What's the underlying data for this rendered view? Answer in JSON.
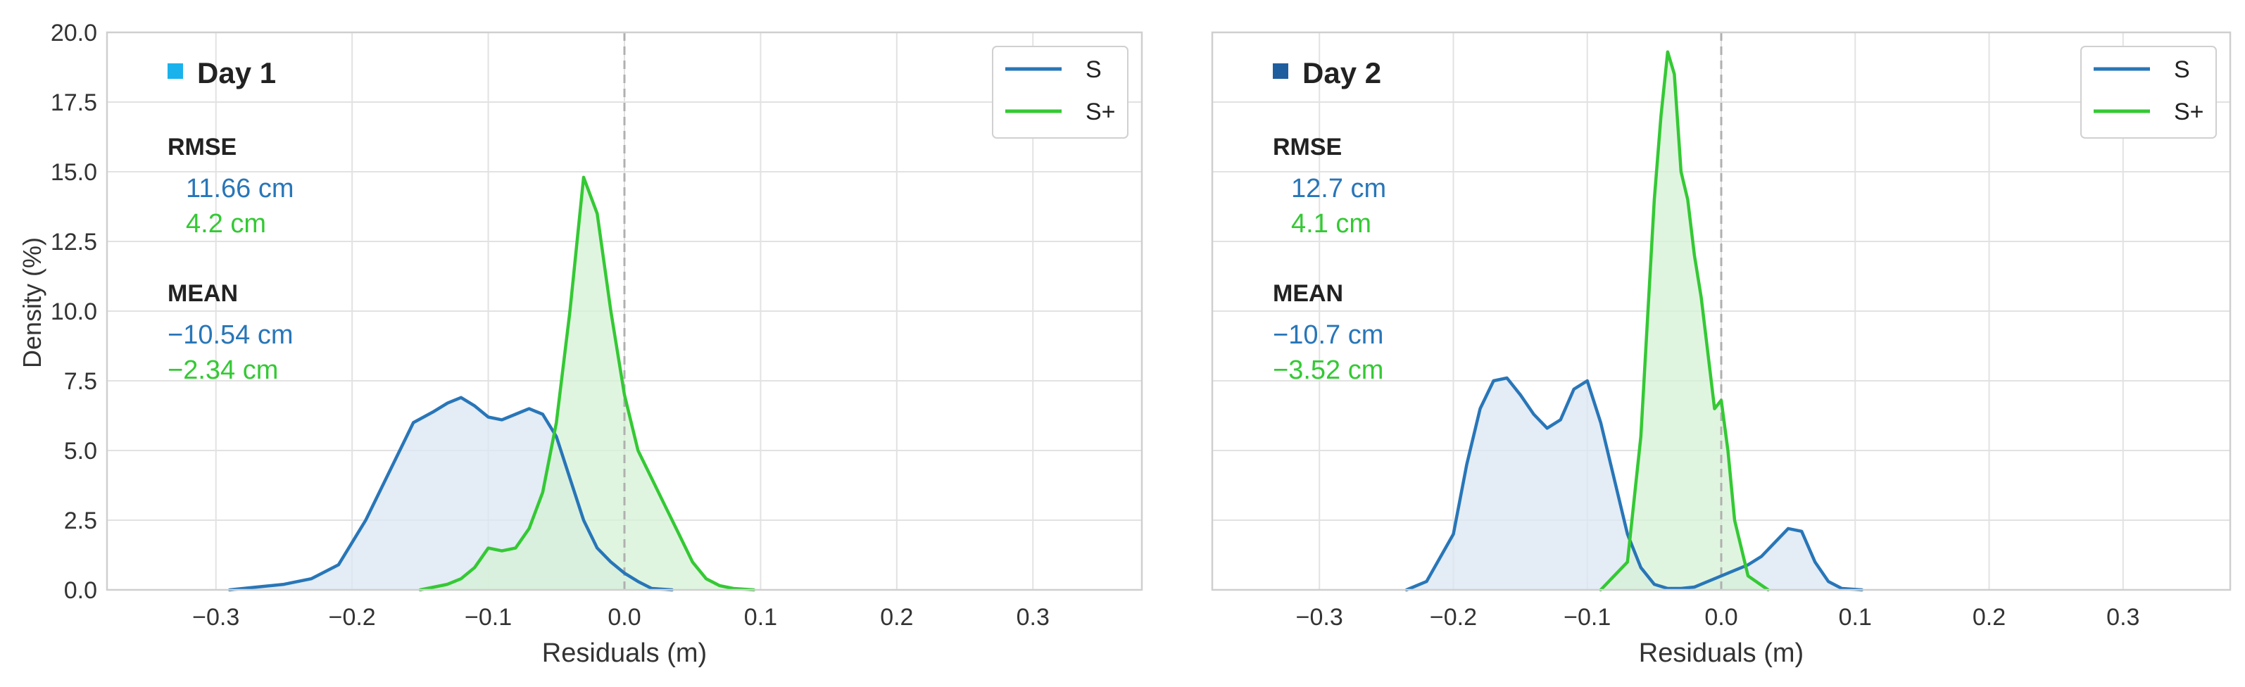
{
  "figure": {
    "ylabel": "Density (%)"
  },
  "colors": {
    "s": "#2876b8",
    "s_plus": "#34c934",
    "grid": "#e2e2e2",
    "frame": "#cfcfcf",
    "zero_line": "#b0b0b0",
    "day1_marker": "#1ab2ec",
    "day2_marker": "#1f5e9e",
    "s_fill": "#dbe6f2",
    "s_plus_fill": "#d5f2d5"
  },
  "chart_data": [
    {
      "type": "line",
      "title": "Day 1",
      "xlabel": "Residuals (m)",
      "ylabel": "Density (%)",
      "xlim": [
        -0.38,
        0.38
      ],
      "ylim": [
        0,
        20
      ],
      "xticks": [
        "−0.3",
        "−0.2",
        "−0.1",
        "0.0",
        "0.1",
        "0.2",
        "0.3"
      ],
      "yticks": [
        "0.0",
        "2.5",
        "5.0",
        "7.5",
        "10.0",
        "12.5",
        "15.0",
        "17.5",
        "20.0"
      ],
      "grid": true,
      "legend_position": "top-right",
      "legend": [
        "S",
        "S+"
      ],
      "stats": {
        "rmse_label": "RMSE",
        "mean_label": "MEAN",
        "rmse_s": "11.66 cm",
        "rmse_s_plus": "4.2 cm",
        "mean_s": "−10.54 cm",
        "mean_s_plus": "−2.34 cm"
      },
      "series": [
        {
          "name": "S",
          "x": [
            -0.29,
            -0.27,
            -0.25,
            -0.23,
            -0.21,
            -0.19,
            -0.17,
            -0.155,
            -0.14,
            -0.13,
            -0.12,
            -0.11,
            -0.1,
            -0.09,
            -0.08,
            -0.07,
            -0.06,
            -0.05,
            -0.04,
            -0.03,
            -0.02,
            -0.01,
            0.0,
            0.01,
            0.02,
            0.035
          ],
          "values": [
            0.0,
            0.1,
            0.2,
            0.4,
            0.9,
            2.5,
            4.5,
            6.0,
            6.4,
            6.7,
            6.9,
            6.6,
            6.2,
            6.1,
            6.3,
            6.5,
            6.3,
            5.5,
            4.0,
            2.5,
            1.5,
            1.0,
            0.6,
            0.3,
            0.05,
            0.0
          ]
        },
        {
          "name": "S+",
          "x": [
            -0.15,
            -0.13,
            -0.12,
            -0.11,
            -0.1,
            -0.09,
            -0.08,
            -0.07,
            -0.06,
            -0.05,
            -0.04,
            -0.03,
            -0.02,
            -0.01,
            0.0,
            0.01,
            0.02,
            0.03,
            0.04,
            0.05,
            0.06,
            0.07,
            0.08,
            0.095
          ],
          "values": [
            0.0,
            0.2,
            0.4,
            0.8,
            1.5,
            1.4,
            1.5,
            2.2,
            3.5,
            6.0,
            10.0,
            14.8,
            13.5,
            10.0,
            7.0,
            5.0,
            4.0,
            3.0,
            2.0,
            1.0,
            0.4,
            0.15,
            0.05,
            0.0
          ]
        }
      ]
    },
    {
      "type": "line",
      "title": "Day 2",
      "xlabel": "Residuals (m)",
      "ylabel": "",
      "xlim": [
        -0.38,
        0.38
      ],
      "ylim": [
        0,
        20
      ],
      "xticks": [
        "−0.3",
        "−0.2",
        "−0.1",
        "0.0",
        "0.1",
        "0.2",
        "0.3"
      ],
      "yticks": [],
      "grid": true,
      "legend_position": "top-right",
      "legend": [
        "S",
        "S+"
      ],
      "stats": {
        "rmse_label": "RMSE",
        "mean_label": "MEAN",
        "rmse_s": "12.7 cm",
        "rmse_s_plus": "4.1 cm",
        "mean_s": "−10.7 cm",
        "mean_s_plus": "−3.52 cm"
      },
      "series": [
        {
          "name": "S",
          "x": [
            -0.235,
            -0.22,
            -0.2,
            -0.19,
            -0.18,
            -0.17,
            -0.16,
            -0.15,
            -0.14,
            -0.13,
            -0.12,
            -0.11,
            -0.1,
            -0.09,
            -0.08,
            -0.07,
            -0.06,
            -0.05,
            -0.04,
            -0.03,
            -0.02,
            -0.01,
            0.0,
            0.01,
            0.02,
            0.03,
            0.04,
            0.05,
            0.06,
            0.07,
            0.08,
            0.09,
            0.105
          ],
          "values": [
            0.0,
            0.3,
            2.0,
            4.5,
            6.5,
            7.5,
            7.6,
            7.0,
            6.3,
            5.8,
            6.1,
            7.2,
            7.5,
            6.0,
            4.0,
            2.0,
            0.8,
            0.2,
            0.05,
            0.05,
            0.1,
            0.3,
            0.5,
            0.7,
            0.9,
            1.2,
            1.7,
            2.2,
            2.1,
            1.0,
            0.3,
            0.05,
            0.0
          ]
        },
        {
          "name": "S+",
          "x": [
            -0.09,
            -0.08,
            -0.07,
            -0.06,
            -0.05,
            -0.045,
            -0.04,
            -0.035,
            -0.03,
            -0.025,
            -0.02,
            -0.015,
            -0.01,
            -0.005,
            0.0,
            0.005,
            0.01,
            0.02,
            0.035
          ],
          "values": [
            0.0,
            0.5,
            1.0,
            5.5,
            14.0,
            17.0,
            19.3,
            18.5,
            15.0,
            14.0,
            12.0,
            10.5,
            8.5,
            6.5,
            6.8,
            5.0,
            2.5,
            0.5,
            0.0
          ]
        }
      ]
    }
  ]
}
